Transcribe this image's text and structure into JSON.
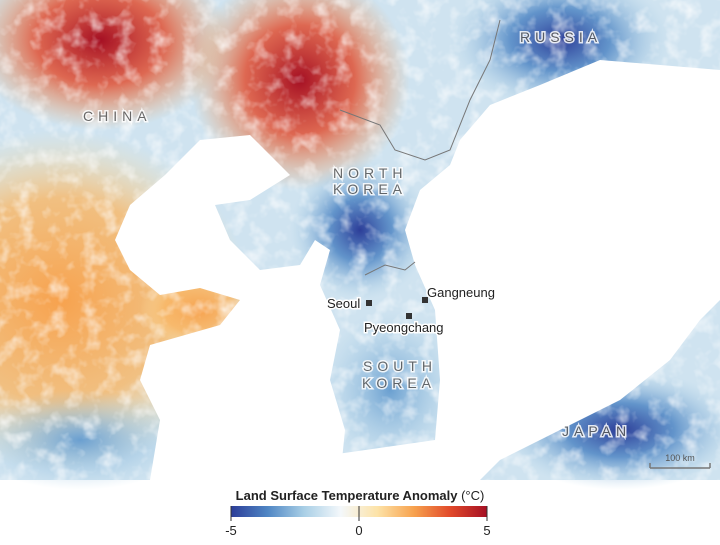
{
  "map": {
    "country_labels": [
      {
        "text": "CHINA"
      },
      {
        "text": "RUSSIA"
      },
      {
        "lines": [
          "NORTH",
          "KOREA"
        ]
      },
      {
        "lines": [
          "SOUTH",
          "KOREA"
        ]
      },
      {
        "text": "JAPAN"
      }
    ],
    "cities": [
      {
        "name": "Seoul"
      },
      {
        "name": "Gangneung"
      },
      {
        "name": "Pyeongchang"
      }
    ],
    "scale_bar": "100 km"
  },
  "legend": {
    "title": "Land Surface Temperature Anomaly",
    "unit": "(°C)",
    "ticks": [
      -5,
      0,
      5
    ],
    "range": [
      -5,
      5
    ],
    "colors": [
      "#2c3d98",
      "#4f86c4",
      "#a9cfe6",
      "#f4f8fb",
      "#fde3a8",
      "#f7a24e",
      "#e1492a",
      "#a50f23"
    ]
  }
}
